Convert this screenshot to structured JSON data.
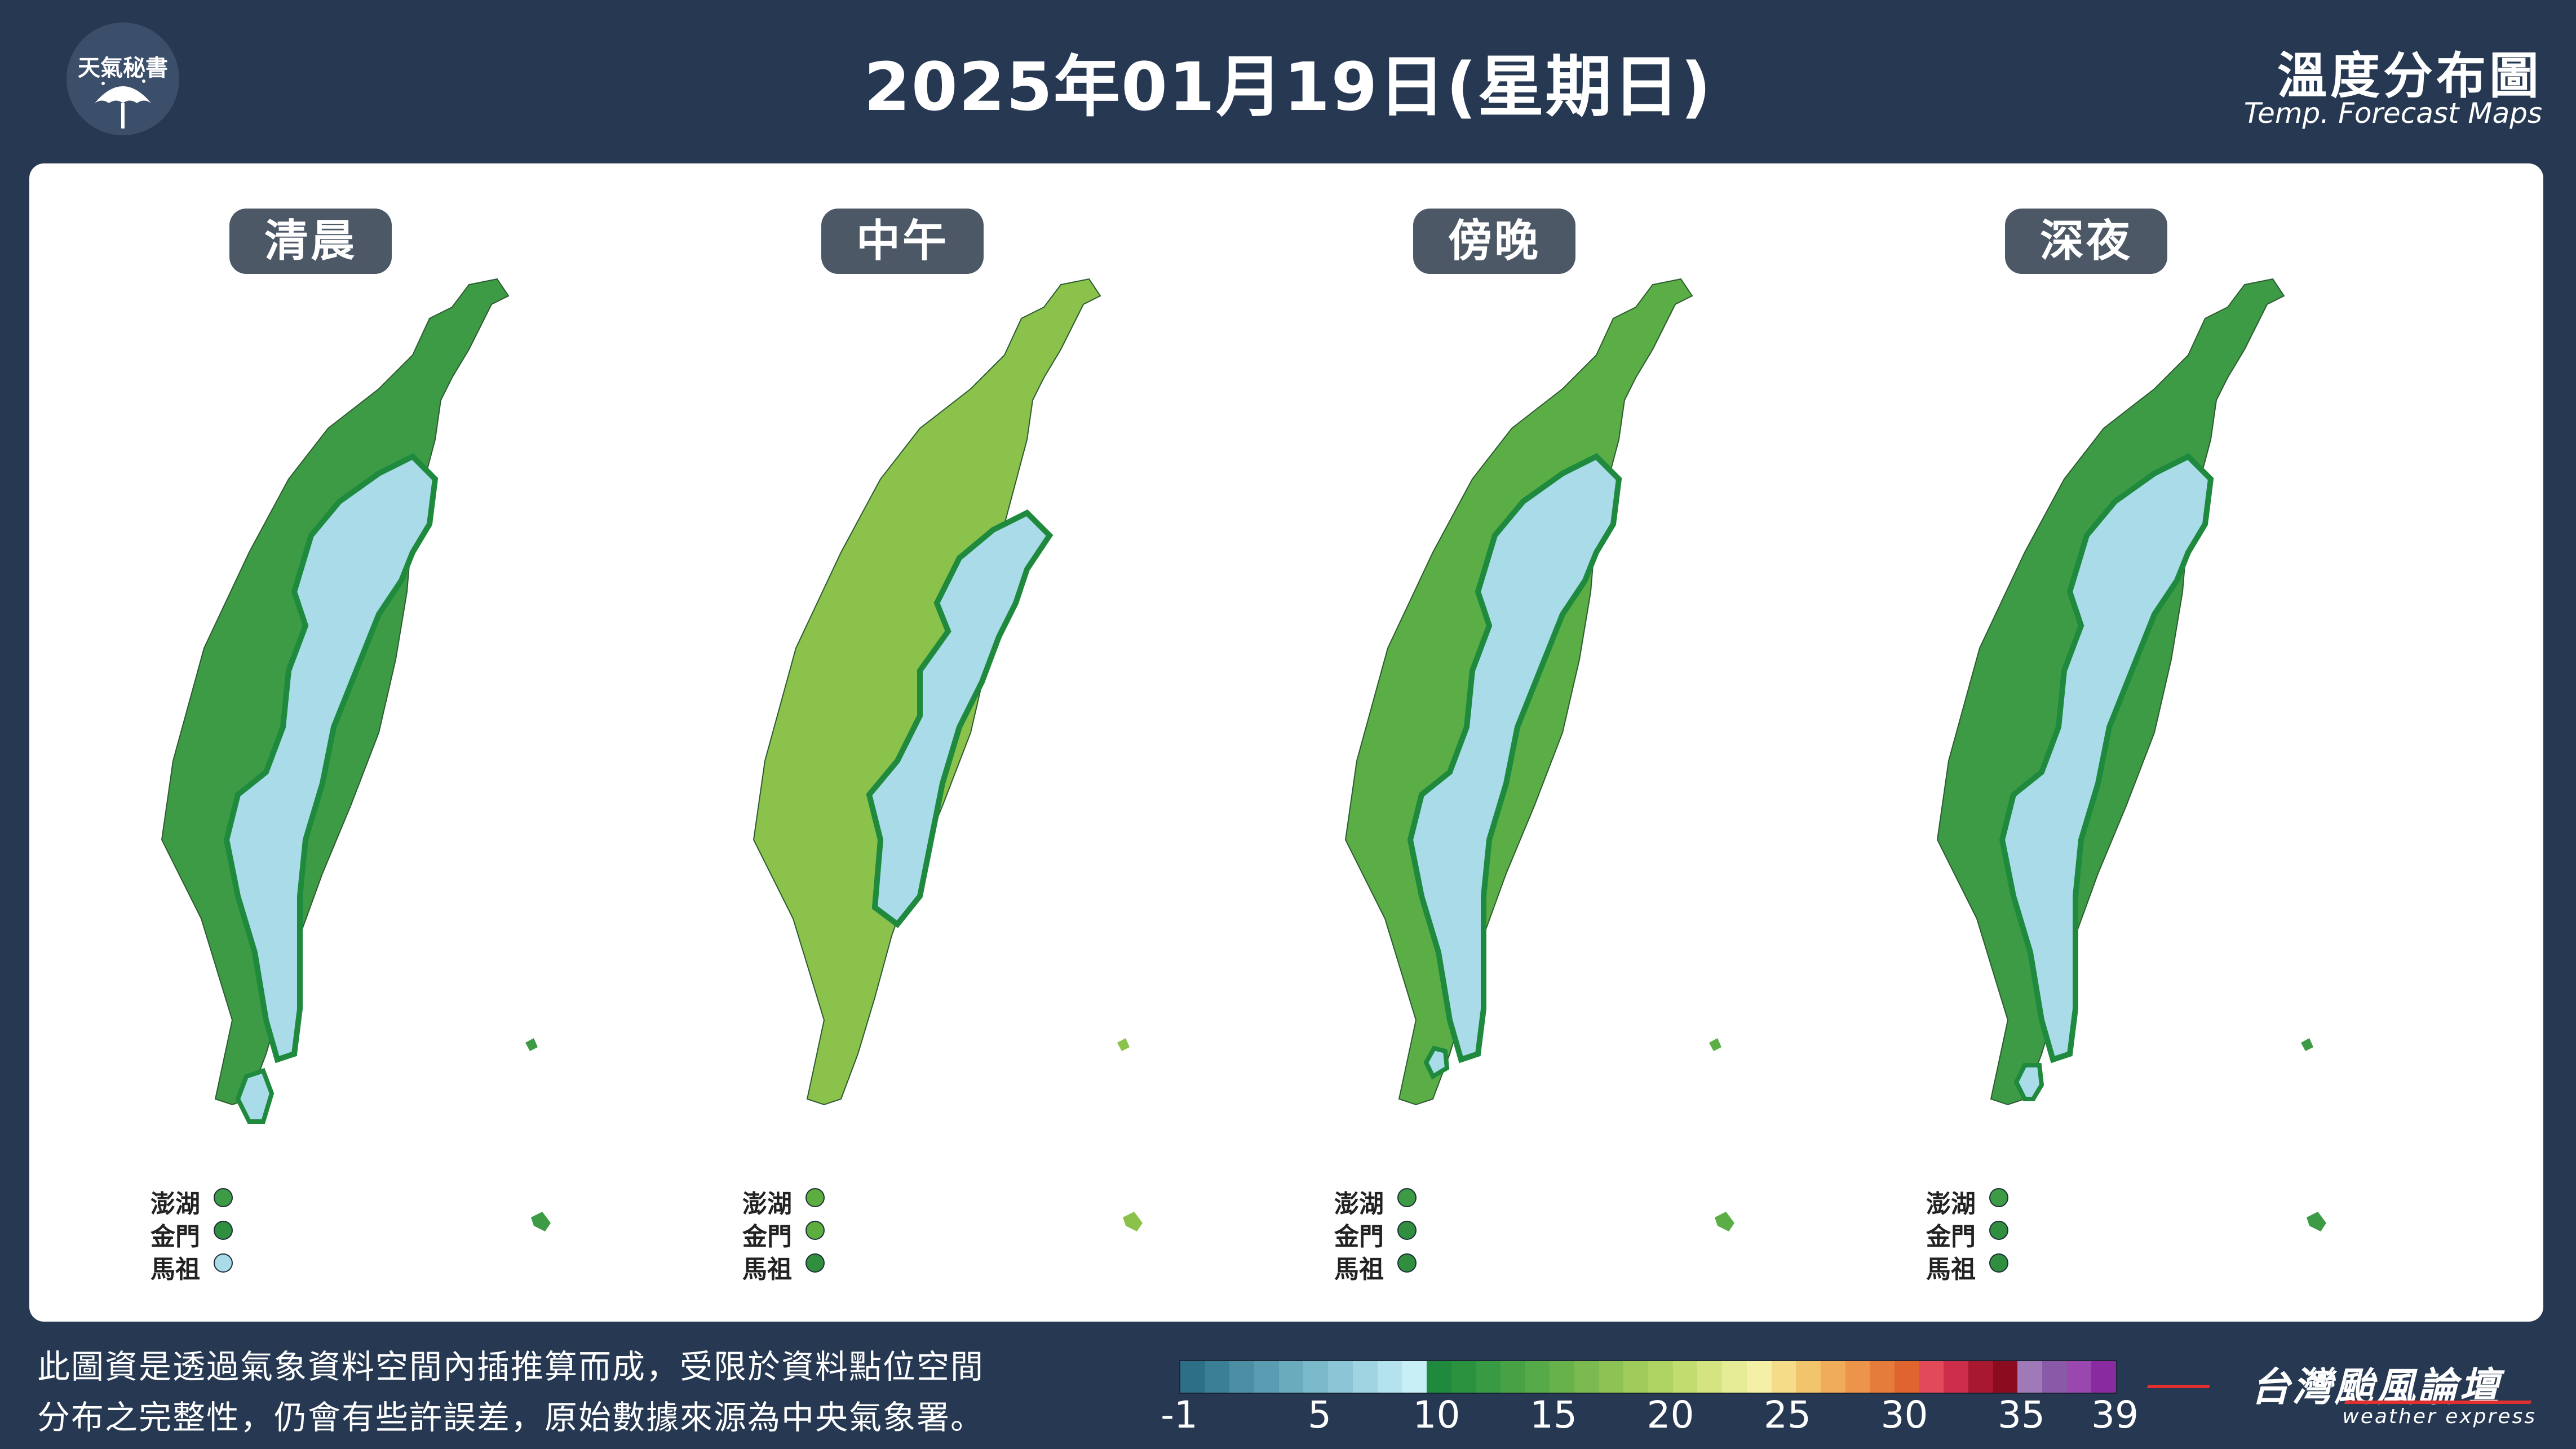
{
  "logo": {
    "text": "天氣秘書",
    "icon": "umbrella-icon"
  },
  "header": {
    "title": "2025年01月19日(星期日)",
    "map_title": "溫度分布圖",
    "map_subtitle": "Temp. Forecast Maps"
  },
  "maps": [
    {
      "period": "清晨",
      "cold_fill": "#a9dbe9",
      "warm_fill": "#3d9b45",
      "islands": [
        {
          "name": "澎湖",
          "color": "#3d9b45"
        },
        {
          "name": "金門",
          "color": "#2f8f3f"
        },
        {
          "name": "馬祖",
          "color": "#a9dbe9"
        }
      ]
    },
    {
      "period": "中午",
      "cold_fill": "#a9dbe9",
      "warm_fill": "#8ac24b",
      "islands": [
        {
          "name": "澎湖",
          "color": "#5cae3f"
        },
        {
          "name": "金門",
          "color": "#5cae3f"
        },
        {
          "name": "馬祖",
          "color": "#2f8f3f"
        }
      ]
    },
    {
      "period": "傍晚",
      "cold_fill": "#a9dbe9",
      "warm_fill": "#5aae45",
      "islands": [
        {
          "name": "澎湖",
          "color": "#3d9b45"
        },
        {
          "name": "金門",
          "color": "#2f8f3f"
        },
        {
          "name": "馬祖",
          "color": "#2f8f3f"
        }
      ]
    },
    {
      "period": "深夜",
      "cold_fill": "#a9dbe9",
      "warm_fill": "#3d9b45",
      "islands": [
        {
          "name": "澎湖",
          "color": "#3d9b45"
        },
        {
          "name": "金門",
          "color": "#2f8f3f"
        },
        {
          "name": "馬祖",
          "color": "#2f8f3f"
        }
      ]
    }
  ],
  "note": {
    "line1": "此圖資是透過氣象資料空間內插推算而成，受限於資料點位空間",
    "line2": "分布之完整性，仍會有些許誤差，原始數據來源為中央氣象署。"
  },
  "legend": {
    "ticks": [
      "-1",
      "5",
      "10",
      "15",
      "20",
      "25",
      "30",
      "35",
      "39"
    ],
    "tick_values": [
      -1,
      5,
      10,
      15,
      20,
      25,
      30,
      35,
      39
    ],
    "min": -1,
    "max": 39,
    "colors": [
      "#2d6f86",
      "#3a7f96",
      "#4c8fa5",
      "#5a9db2",
      "#6aabbe",
      "#7ab9ca",
      "#8cc6d6",
      "#a0d4e2",
      "#b4e2ee",
      "#c8eef6",
      "#1f8a3e",
      "#2a923f",
      "#389a42",
      "#46a245",
      "#56aa48",
      "#68b24b",
      "#7aba4f",
      "#8cc354",
      "#9ecb5a",
      "#b0d464",
      "#c2dc70",
      "#d4e480",
      "#e6ec96",
      "#f4f0a8",
      "#f4dc88",
      "#f2c46c",
      "#f0ac58",
      "#ec944a",
      "#e67c3c",
      "#e0642e",
      "#e24a5a",
      "#cc2e4a",
      "#a8182e",
      "#8a0c1e",
      "#a07ab8",
      "#8a5aa8",
      "#9a48b0",
      "#8a2aa0"
    ]
  },
  "brand": {
    "name": "台灣颱風論壇",
    "sub": "weather express"
  }
}
